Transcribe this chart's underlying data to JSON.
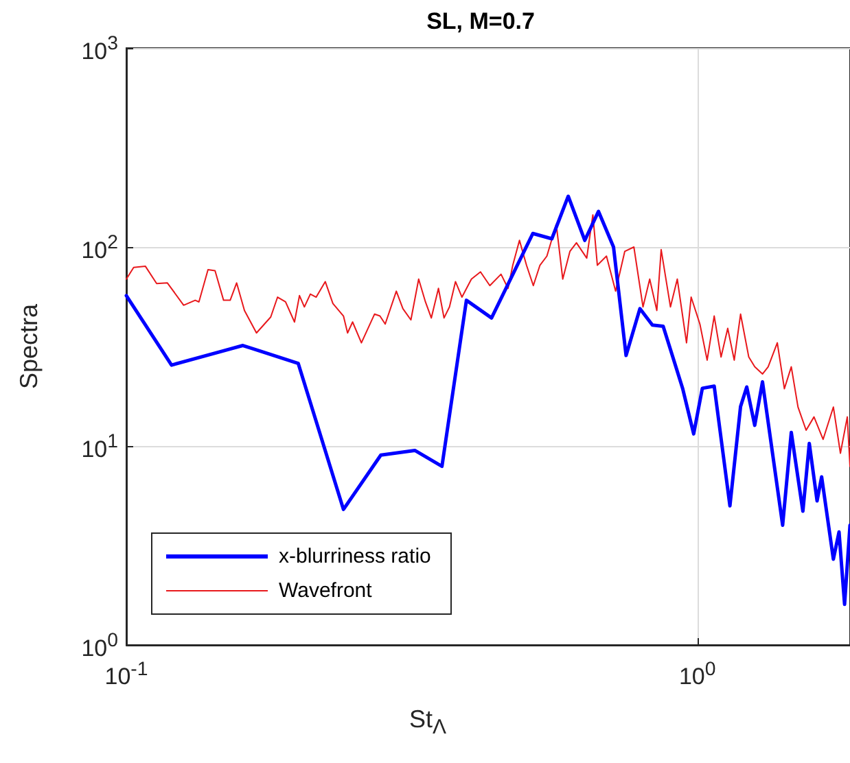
{
  "chart_data": {
    "type": "line",
    "title": "SL, M=0.7",
    "xlabel": "St$_{Λ}$",
    "ylabel": "Spectra",
    "log": "xy",
    "grid": true,
    "legend": "bottom left",
    "xlim": [
      0.1,
      1.85
    ],
    "ylim": [
      1,
      1000
    ],
    "xticks": [
      {
        "value": 0.1,
        "label": "10$^{-1}$"
      },
      {
        "value": 1,
        "label": "10$^{0}$"
      }
    ],
    "yticks": [
      {
        "value": 1,
        "label": "10$^{0}$"
      },
      {
        "value": 10,
        "label": "10$^{1}$"
      },
      {
        "value": 100,
        "label": "10$^{2}$"
      },
      {
        "value": 1000,
        "label": "10$^{3}$"
      }
    ],
    "series": [
      {
        "name": "x-blurriness ratio",
        "color": "#0000ff",
        "x": [
          0.1,
          0.12,
          0.16,
          0.2,
          0.24,
          0.279,
          0.32,
          0.357,
          0.394,
          0.436,
          0.515,
          0.556,
          0.594,
          0.635,
          0.671,
          0.713,
          0.75,
          0.793,
          0.834,
          0.871,
          0.942,
          0.985,
          1.02,
          1.07,
          1.14,
          1.19,
          1.22,
          1.26,
          1.3,
          1.41,
          1.46,
          1.53,
          1.57,
          1.62,
          1.65,
          1.73,
          1.77,
          1.81,
          1.85
        ],
        "values": [
          57,
          25.5,
          32,
          26,
          4.8,
          9,
          9.5,
          7.9,
          54,
          44,
          117,
          110,
          180,
          108,
          151,
          100,
          28.5,
          49,
          40.5,
          40,
          19.5,
          11.5,
          19.5,
          20,
          5,
          15.8,
          19.8,
          12.7,
          21,
          4,
          11.7,
          4.7,
          10.3,
          5.3,
          7,
          2.7,
          3.7,
          1.6,
          4
        ]
      },
      {
        "name": "Wavefront",
        "color": "#e8181c",
        "x": [
          0.1,
          0.103,
          0.108,
          0.113,
          0.118,
          0.126,
          0.132,
          0.134,
          0.139,
          0.143,
          0.148,
          0.152,
          0.156,
          0.161,
          0.169,
          0.179,
          0.184,
          0.19,
          0.197,
          0.201,
          0.205,
          0.21,
          0.215,
          0.223,
          0.23,
          0.24,
          0.244,
          0.249,
          0.258,
          0.272,
          0.278,
          0.284,
          0.297,
          0.305,
          0.315,
          0.325,
          0.334,
          0.342,
          0.352,
          0.36,
          0.368,
          0.377,
          0.387,
          0.402,
          0.417,
          0.433,
          0.453,
          0.466,
          0.475,
          0.488,
          0.502,
          0.516,
          0.53,
          0.545,
          0.566,
          0.581,
          0.598,
          0.614,
          0.64,
          0.656,
          0.668,
          0.693,
          0.719,
          0.746,
          0.774,
          0.803,
          0.825,
          0.849,
          0.864,
          0.897,
          0.922,
          0.957,
          0.975,
          1.01,
          1.04,
          1.07,
          1.1,
          1.13,
          1.16,
          1.19,
          1.23,
          1.26,
          1.3,
          1.33,
          1.38,
          1.42,
          1.46,
          1.5,
          1.55,
          1.6,
          1.66,
          1.73,
          1.78,
          1.83,
          1.85
        ],
        "values": [
          69,
          79,
          80,
          65.5,
          66,
          51,
          54,
          53,
          77,
          76,
          54,
          54,
          66,
          48,
          37,
          44.5,
          56,
          53,
          42,
          57,
          50,
          58,
          56,
          67,
          52,
          45,
          37,
          42,
          33,
          46,
          45,
          41,
          60,
          49,
          43,
          69,
          53,
          44,
          62,
          44,
          50,
          67,
          56,
          69,
          75,
          64,
          73,
          62,
          81,
          108,
          81,
          64,
          81,
          90,
          130,
          69,
          95,
          105,
          88,
          145,
          81,
          90,
          60,
          95,
          100,
          50,
          69,
          48,
          97,
          50,
          69,
          33,
          56,
          41,
          27,
          45,
          28,
          39,
          27,
          46,
          28,
          25,
          23,
          25,
          33,
          19.4,
          25,
          15.7,
          12,
          14,
          10.8,
          15.7,
          9.2,
          14,
          7.9
        ]
      }
    ]
  }
}
